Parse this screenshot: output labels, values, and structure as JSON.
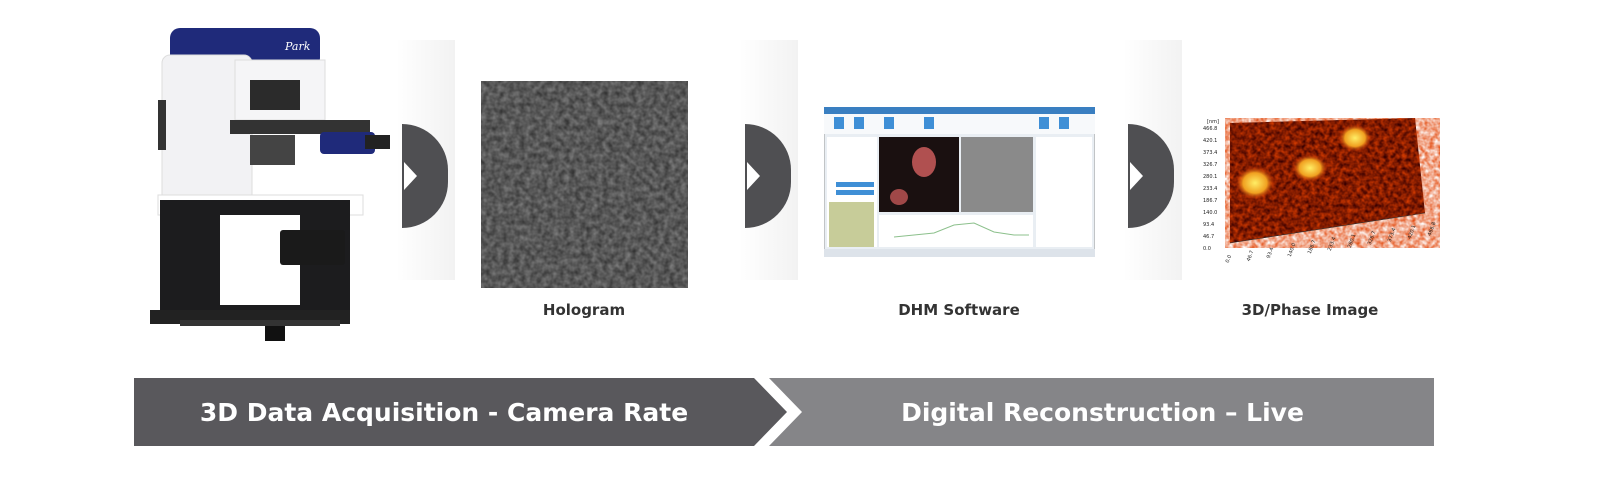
{
  "steps": [
    {
      "caption": ""
    },
    {
      "caption": "Hologram"
    },
    {
      "caption": "DHM Software"
    },
    {
      "caption": "3D/Phase Image"
    }
  ],
  "microscope": {
    "logo_text": "Park"
  },
  "phase_image": {
    "unit": "[nm]",
    "y_ticks": [
      "0.0",
      "46.7",
      "93.4",
      "140.0",
      "186.7",
      "233.4",
      "280.1",
      "326.7",
      "373.4",
      "420.1",
      "466.8"
    ],
    "x_ticks": [
      "0.0",
      "46.7",
      "93.4",
      "140.0",
      "186.7",
      "233.4",
      "280.1",
      "326.7",
      "373.4",
      "420.1",
      "466.8"
    ]
  },
  "bands": {
    "left": "3D Data Acquisition - Camera Rate",
    "right": "Digital Reconstruction – Live"
  },
  "colors": {
    "band_left": "#59585c",
    "band_right": "#858588",
    "chevron": "#4f4f52",
    "brand_blue": "#1f2a7a"
  }
}
